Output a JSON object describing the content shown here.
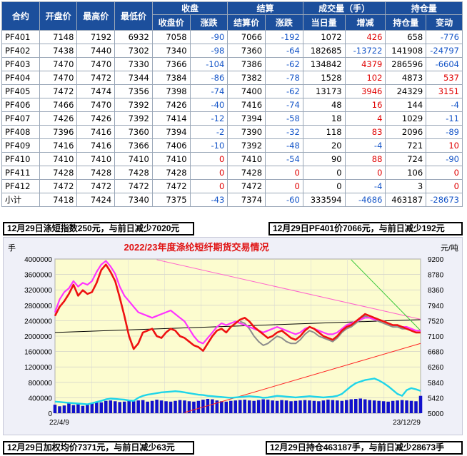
{
  "table": {
    "group_headers": [
      "收盘",
      "结算",
      "成交量（手）",
      "持仓量"
    ],
    "columns": [
      "合约",
      "开盘价",
      "最高价",
      "最低价",
      "收盘价",
      "涨跌",
      "结算价",
      "涨跌",
      "当日量",
      "增减",
      "持仓量",
      "变动"
    ],
    "rows": [
      [
        "PF401",
        "7148",
        "7192",
        "6932",
        "7058",
        "-90",
        "7066",
        "-192",
        "1072",
        "426",
        "658",
        "-776"
      ],
      [
        "PF402",
        "7438",
        "7440",
        "7302",
        "7340",
        "-98",
        "7360",
        "-64",
        "182685",
        "-13722",
        "141908",
        "-24797"
      ],
      [
        "PF403",
        "7470",
        "7470",
        "7330",
        "7366",
        "-104",
        "7386",
        "-62",
        "134842",
        "4379",
        "286596",
        "-6604"
      ],
      [
        "PF404",
        "7470",
        "7472",
        "7344",
        "7384",
        "-86",
        "7382",
        "-78",
        "1528",
        "102",
        "4873",
        "537"
      ],
      [
        "PF405",
        "7472",
        "7474",
        "7356",
        "7398",
        "-74",
        "7400",
        "-62",
        "13173",
        "3946",
        "24329",
        "3151"
      ],
      [
        "PF406",
        "7466",
        "7470",
        "7392",
        "7426",
        "-40",
        "7416",
        "-74",
        "48",
        "16",
        "144",
        "-4"
      ],
      [
        "PF407",
        "7426",
        "7426",
        "7392",
        "7414",
        "-12",
        "7394",
        "-58",
        "18",
        "4",
        "1029",
        "-11"
      ],
      [
        "PF408",
        "7396",
        "7416",
        "7360",
        "7394",
        "-2",
        "7390",
        "-32",
        "118",
        "83",
        "2096",
        "-89"
      ],
      [
        "PF409",
        "7416",
        "7416",
        "7366",
        "7406",
        "-10",
        "7392",
        "-48",
        "20",
        "-4",
        "721",
        "10"
      ],
      [
        "PF410",
        "7410",
        "7410",
        "7410",
        "7410",
        "0",
        "7410",
        "-54",
        "90",
        "88",
        "724",
        "-90"
      ],
      [
        "PF411",
        "7428",
        "7428",
        "7428",
        "7428",
        "0",
        "7428",
        "0",
        "0",
        "0",
        "106",
        "0"
      ],
      [
        "PF412",
        "7472",
        "7472",
        "7472",
        "7472",
        "0",
        "7472",
        "0",
        "0",
        "-4",
        "3",
        "0"
      ],
      [
        "小计",
        "7418",
        "7424",
        "7340",
        "7375",
        "-43",
        "7374",
        "-60",
        "333594",
        "-4686",
        "463187",
        "-28673"
      ]
    ]
  },
  "notes": {
    "index": "12月29日涤短指数250元，与前日减少7020元",
    "pf401": "12月29日PF401价7066元，与前日减少192元",
    "avg_price": "12月29日加权均价7371元，与前日减少63元",
    "position": "12月29日持仓463187手，与前日减少28673手"
  },
  "colors": {
    "header_bg": "#1c4f9c",
    "up": "#e00000",
    "down": "#1656c8",
    "plot_bg": "#fcfccf"
  },
  "chart_data": {
    "type": "line",
    "title": "2022/23年度涤纶短纤期货交易情况",
    "ylabel_left": "手",
    "ylabel_right": "元/吨",
    "y_left_ticks": [
      "4000000",
      "3600000",
      "3200000",
      "2800000",
      "2400000",
      "2000000",
      "1600000",
      "1200000",
      "800000",
      "400000",
      "0"
    ],
    "y_right_ticks": [
      "9200",
      "8780",
      "8360",
      "7940",
      "7520",
      "7100",
      "6680",
      "6260",
      "5840",
      "5420",
      "5000"
    ],
    "ylim_left": [
      0,
      4000000
    ],
    "ylim_right": [
      5000,
      9200
    ],
    "x_tick_labels": [
      "22/4/9",
      "23/12/29"
    ],
    "grid": true,
    "series": [
      {
        "role": "price-red",
        "color": "#ee1111",
        "values": [
          7650,
          7900,
          8050,
          8250,
          8500,
          8200,
          8350,
          8250,
          8300,
          8550,
          8900,
          9050,
          8850,
          8600,
          8150,
          7650,
          7100,
          6750,
          6900,
          7200,
          7250,
          7300,
          7100,
          7050,
          7200,
          7300,
          7250,
          7100,
          7050,
          6950,
          6850,
          6800,
          6700,
          6900,
          7100,
          7250,
          7300,
          7200,
          7350,
          7450,
          7550,
          7600,
          7500,
          7350,
          7250,
          7150,
          7050,
          7100,
          7200,
          7250,
          7150,
          7050,
          7000,
          7100,
          7250,
          7350,
          7300,
          7200,
          7100,
          7050,
          7000,
          7100,
          7250,
          7350,
          7400,
          7500,
          7600,
          7700,
          7650,
          7600,
          7550,
          7500,
          7450,
          7400,
          7400,
          7350,
          7300,
          7250,
          7200,
          7200
        ]
      },
      {
        "role": "price-magenta",
        "color": "#ff33ff",
        "values": [
          7750,
          8100,
          8300,
          8400,
          8600,
          8450,
          8550,
          8500,
          8600,
          8850,
          9050,
          9150,
          9000,
          8800,
          8450,
          8200,
          8050,
          7900,
          7750,
          7700,
          7650,
          7600,
          7650,
          7700,
          7750,
          7800,
          7700,
          7600,
          7500,
          7300,
          7100,
          6950,
          6900,
          7050,
          7200,
          7350,
          7450,
          7400,
          7450,
          7500,
          7450,
          7400,
          7350,
          7300,
          7250,
          7200,
          7250,
          7300,
          7350,
          7300,
          7250,
          7200,
          7150,
          7200,
          7300,
          7350,
          7300,
          7250,
          7200,
          7150,
          7150,
          7200,
          7300,
          7400,
          7450,
          7500,
          7550,
          7600,
          7600,
          7550,
          7550,
          7500,
          7450,
          7400,
          7400,
          7350,
          7350,
          7300,
          7250,
          7250
        ]
      },
      {
        "role": "price-gray",
        "color": "#8c8c8c",
        "values": [
          null,
          null,
          null,
          null,
          null,
          null,
          null,
          null,
          null,
          null,
          null,
          null,
          null,
          null,
          null,
          null,
          null,
          null,
          null,
          null,
          null,
          null,
          null,
          null,
          null,
          null,
          null,
          null,
          null,
          null,
          null,
          null,
          null,
          null,
          null,
          null,
          null,
          null,
          null,
          null,
          7500,
          7450,
          7300,
          7100,
          6950,
          6850,
          6900,
          7000,
          7100,
          7050,
          6950,
          6900,
          6900,
          7000,
          7150,
          7250,
          7200,
          7100,
          7050,
          7000,
          6950,
          7050,
          7200,
          7300,
          7350,
          7450,
          7550,
          7650,
          7600,
          7550,
          7500,
          7450,
          7400,
          7350,
          7350,
          7300,
          7300,
          7250,
          7200,
          7200
        ]
      },
      {
        "role": "position-cyan",
        "color": "#1fd5e9",
        "values": [
          300000,
          290000,
          280000,
          270000,
          260000,
          250000,
          240000,
          230000,
          260000,
          290000,
          320000,
          360000,
          380000,
          370000,
          360000,
          350000,
          330000,
          320000,
          400000,
          450000,
          480000,
          500000,
          520000,
          540000,
          550000,
          560000,
          570000,
          560000,
          540000,
          520000,
          500000,
          480000,
          470000,
          450000,
          440000,
          430000,
          420000,
          410000,
          400000,
          410000,
          420000,
          430000,
          440000,
          430000,
          420000,
          400000,
          410000,
          430000,
          450000,
          440000,
          430000,
          420000,
          410000,
          420000,
          430000,
          440000,
          430000,
          420000,
          410000,
          420000,
          430000,
          450000,
          500000,
          600000,
          700000,
          780000,
          820000,
          860000,
          880000,
          900000,
          850000,
          780000,
          700000,
          600000,
          500000,
          450000,
          600000,
          650000,
          620000,
          580000
        ]
      },
      {
        "role": "volume-bars",
        "color": "#1111cc",
        "values": [
          220000,
          180000,
          200000,
          250000,
          210000,
          230000,
          190000,
          240000,
          260000,
          300000,
          280000,
          320000,
          330000,
          310000,
          290000,
          300000,
          320000,
          310000,
          330000,
          340000,
          300000,
          320000,
          350000,
          330000,
          310000,
          300000,
          320000,
          340000,
          330000,
          310000,
          300000,
          320000,
          350000,
          370000,
          360000,
          330000,
          310000,
          300000,
          320000,
          330000,
          340000,
          350000,
          330000,
          320000,
          340000,
          360000,
          350000,
          330000,
          320000,
          340000,
          330000,
          310000,
          320000,
          330000,
          340000,
          330000,
          320000,
          310000,
          330000,
          350000,
          340000,
          330000,
          320000,
          340000,
          360000,
          370000,
          380000,
          360000,
          340000,
          330000,
          320000,
          310000,
          300000,
          320000,
          330000,
          340000,
          330000,
          320000,
          310000,
          450000
        ]
      }
    ],
    "reference_lines": [
      {
        "role": "black-trend",
        "color": "#000000",
        "from": [
          0,
          7200
        ],
        "to": [
          79,
          7550
        ]
      },
      {
        "role": "pink-trend",
        "color": "#ff66cc",
        "from": [
          22,
          9180
        ],
        "to": [
          79,
          7560
        ]
      },
      {
        "role": "red-trend",
        "color": "#ff2222",
        "from": [
          28,
          5020
        ],
        "to": [
          79,
          6900
        ]
      },
      {
        "role": "green-trend",
        "color": "#3cc83c",
        "from": [
          64,
          9180
        ],
        "to": [
          79,
          7250
        ]
      }
    ]
  }
}
